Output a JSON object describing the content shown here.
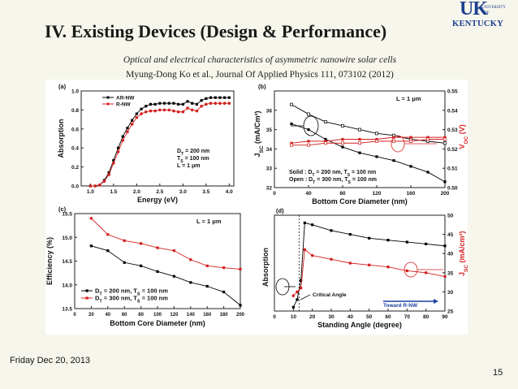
{
  "slide": {
    "title": "IV. Existing Devices (Design & Performance)",
    "subtitle": "Optical and electrical characteristics of asymmetric nanowire solar cells",
    "citation": "Myung-Dong Ko et al., Journal Of Applied Physics 111, 073102 (2012)",
    "date": "Friday Dec 20, 2013",
    "page_number": "15",
    "logo": {
      "uk": "UK",
      "university": "UNIVERSITY",
      "of": "OF",
      "kentucky": "KENTUCKY"
    }
  },
  "chart_data": [
    {
      "type": "line",
      "panel": "(a)",
      "xlabel": "Energy (eV)",
      "ylabel": "Absorption",
      "xlim": [
        0.8,
        4.1
      ],
      "ylim": [
        0.0,
        1.0
      ],
      "xticks": [
        "1.0",
        "1.5",
        "2.0",
        "2.5",
        "3.0",
        "3.5",
        "4.0"
      ],
      "yticks": [
        "0.0",
        "0.2",
        "0.4",
        "0.6",
        "0.8",
        "1.0"
      ],
      "legend": [
        "AR-NW",
        "R-NW"
      ],
      "annotation": [
        "D_T = 200 nm",
        "T_S = 100 nm",
        "L = 1 μm"
      ],
      "series": [
        {
          "name": "AR-NW",
          "color": "#000000",
          "x": [
            1.0,
            1.1,
            1.2,
            1.3,
            1.4,
            1.5,
            1.6,
            1.7,
            1.8,
            1.9,
            2.0,
            2.1,
            2.2,
            2.3,
            2.4,
            2.5,
            2.6,
            2.7,
            2.8,
            2.9,
            3.0,
            3.1,
            3.2,
            3.3,
            3.4,
            3.5,
            3.6,
            3.7,
            3.8,
            3.9,
            4.0
          ],
          "y": [
            0.0,
            0.0,
            0.01,
            0.06,
            0.14,
            0.27,
            0.4,
            0.52,
            0.61,
            0.69,
            0.76,
            0.81,
            0.84,
            0.86,
            0.86,
            0.87,
            0.87,
            0.87,
            0.87,
            0.86,
            0.86,
            0.89,
            0.87,
            0.86,
            0.9,
            0.92,
            0.93,
            0.93,
            0.93,
            0.93,
            0.93
          ]
        },
        {
          "name": "R-NW",
          "color": "#d42020",
          "x": [
            1.0,
            1.1,
            1.2,
            1.3,
            1.4,
            1.5,
            1.6,
            1.7,
            1.8,
            1.9,
            2.0,
            2.1,
            2.2,
            2.3,
            2.4,
            2.5,
            2.6,
            2.7,
            2.8,
            2.9,
            3.0,
            3.1,
            3.2,
            3.3,
            3.4,
            3.5,
            3.6,
            3.7,
            3.8,
            3.9,
            4.0
          ],
          "y": [
            0.0,
            0.0,
            0.01,
            0.05,
            0.12,
            0.24,
            0.36,
            0.48,
            0.57,
            0.65,
            0.72,
            0.76,
            0.78,
            0.79,
            0.79,
            0.8,
            0.8,
            0.8,
            0.79,
            0.78,
            0.78,
            0.82,
            0.8,
            0.79,
            0.84,
            0.86,
            0.87,
            0.87,
            0.87,
            0.87,
            0.87
          ]
        }
      ]
    },
    {
      "type": "line",
      "panel": "(b)",
      "xlabel": "Bottom Core Diameter (nm)",
      "ylabel": "J_SC (mA/Cm²)",
      "ylabel_right": "V_OC (V)",
      "xlim": [
        0,
        200
      ],
      "ylim": [
        32,
        37
      ],
      "ylim_right": [
        0.5,
        0.55
      ],
      "xticks": [
        "0",
        "40",
        "80",
        "120",
        "160",
        "200"
      ],
      "yticks": [
        "32",
        "33",
        "34",
        "35",
        "36"
      ],
      "yticks_right": [
        "0.50",
        "0.51",
        "0.52",
        "0.53",
        "0.54",
        "0.55"
      ],
      "annotation": [
        "L = 1 μm",
        "Solid : D_T = 200 nm, T_S = 100 nm",
        "Open : D_T = 300 nm, T_S = 100 nm"
      ],
      "series": [
        {
          "name": "",
          "color": "#000000",
          "axis": "left",
          "x": [
            20,
            40,
            60,
            80,
            100,
            120,
            140,
            160,
            180,
            200
          ],
          "y": [
            35.3,
            35.0,
            34.5,
            34.1,
            33.8,
            33.6,
            33.4,
            33.1,
            32.8,
            32.3
          ]
        },
        {
          "name": "",
          "color": "#000000",
          "axis": "left",
          "x": [
            20,
            40,
            60,
            80,
            100,
            120,
            140,
            160,
            180,
            200
          ],
          "y": [
            36.3,
            35.8,
            35.4,
            35.2,
            35.0,
            34.8,
            34.7,
            34.5,
            34.4,
            34.3
          ]
        },
        {
          "name": "",
          "color": "#d42020",
          "axis": "right",
          "x": [
            20,
            40,
            60,
            80,
            100,
            120,
            140,
            160,
            180,
            200
          ],
          "y": [
            0.523,
            0.524,
            0.524,
            0.525,
            0.525,
            0.525,
            0.526,
            0.526,
            0.526,
            0.526
          ]
        },
        {
          "name": "",
          "color": "#d42020",
          "axis": "right",
          "x": [
            20,
            40,
            60,
            80,
            100,
            120,
            140,
            160,
            180,
            200
          ],
          "y": [
            0.522,
            0.522,
            0.523,
            0.523,
            0.523,
            0.524,
            0.524,
            0.524,
            0.525,
            0.525
          ]
        }
      ]
    },
    {
      "type": "line",
      "panel": "(c)",
      "xlabel": "Bottom Core Diameter (nm)",
      "ylabel": "Efficiency (%)",
      "xlim": [
        0,
        200
      ],
      "ylim": [
        13.5,
        15.5
      ],
      "xticks": [
        "0",
        "20",
        "40",
        "60",
        "80",
        "100",
        "120",
        "140",
        "160",
        "180",
        "200"
      ],
      "yticks": [
        "13.5",
        "14.0",
        "14.5",
        "15.0",
        "15.5"
      ],
      "annotation": [
        "L = 1 μm"
      ],
      "legend": [
        "D_T = 200 nm, T_S = 100 nm",
        "D_T = 300 nm, T_S = 100 nm"
      ],
      "series": [
        {
          "name": "D_T = 200 nm, T_S = 100 nm",
          "color": "#000000",
          "x": [
            20,
            40,
            60,
            80,
            100,
            120,
            140,
            160,
            180,
            200
          ],
          "y": [
            14.82,
            14.72,
            14.47,
            14.4,
            14.28,
            14.18,
            14.05,
            13.97,
            13.85,
            13.57
          ]
        },
        {
          "name": "D_T = 300 nm, T_S = 100 nm",
          "color": "#d42020",
          "x": [
            20,
            40,
            60,
            80,
            100,
            120,
            140,
            160,
            180,
            200
          ],
          "y": [
            15.4,
            15.06,
            14.93,
            14.87,
            14.78,
            14.72,
            14.53,
            14.4,
            14.36,
            14.33
          ]
        }
      ]
    },
    {
      "type": "line",
      "panel": "(d)",
      "xlabel": "Standing Angle (degree)",
      "ylabel": "Absorption",
      "ylabel_right": "J_SC (mA/cm²)",
      "xlim": [
        0,
        90
      ],
      "ylim_right": [
        25,
        50
      ],
      "xticks": [
        "0",
        "10",
        "20",
        "30",
        "40",
        "50",
        "60",
        "70",
        "80",
        "90"
      ],
      "yticks_right": [
        "25",
        "30",
        "35",
        "40",
        "45",
        "50"
      ],
      "annotation": [
        "Critical Angle",
        "Toward R-NW"
      ],
      "series": [
        {
          "name": "",
          "color": "#000000",
          "axis": "right",
          "x": [
            10,
            12,
            14,
            16,
            20,
            30,
            40,
            50,
            60,
            70,
            80,
            90
          ],
          "y": [
            26,
            28,
            33,
            48,
            47.5,
            46,
            45,
            44,
            43.5,
            43,
            42.5,
            42
          ]
        },
        {
          "name": "",
          "color": "#d42020",
          "axis": "right",
          "x": [
            10,
            12,
            14,
            16,
            20,
            30,
            40,
            50,
            60,
            70,
            80,
            90
          ],
          "y": [
            29,
            30,
            31,
            41,
            39.5,
            38.5,
            37.5,
            37,
            36.5,
            35.5,
            35,
            34
          ]
        }
      ]
    }
  ]
}
